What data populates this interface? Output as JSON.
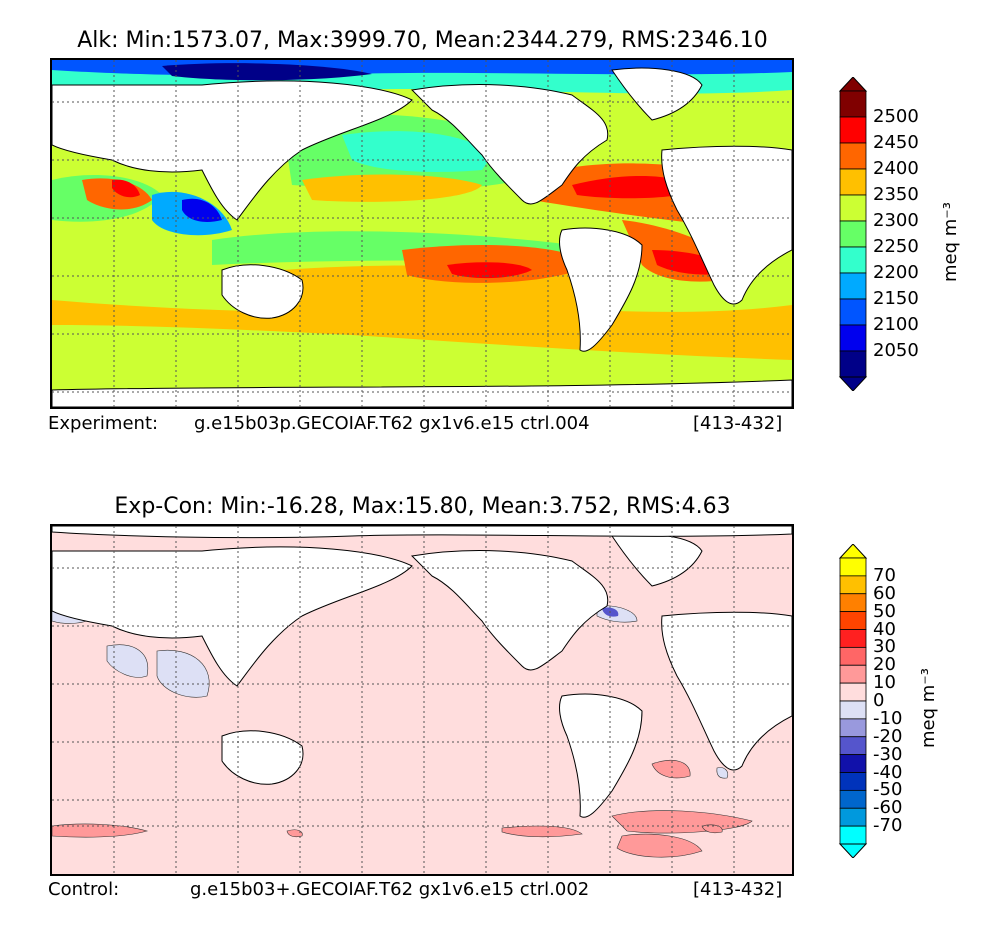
{
  "panels": [
    {
      "title": "Alk: Min:1573.07, Max:3999.70, Mean:2344.279, RMS:2346.10",
      "caption_label": "Experiment:",
      "caption_case": "g.e15b03p.GECOIAF.T62 gx1v6.e15 ctrl.004",
      "caption_years": "[413-432]",
      "unit": "meq m⁻³",
      "colorbar": {
        "labels": [
          "2500",
          "2450",
          "2400",
          "2350",
          "2300",
          "2250",
          "2200",
          "2150",
          "2100",
          "2050"
        ],
        "colors": [
          "#800000",
          "#ff0000",
          "#ff6600",
          "#ffc000",
          "#ccff33",
          "#66ff66",
          "#33ffcc",
          "#00aaff",
          "#0055ff",
          "#0000ee",
          "#000088"
        ]
      }
    },
    {
      "title": "Exp-Con: Min:-16.28, Max:15.80, Mean:3.752, RMS:4.63",
      "caption_label": "Control:",
      "caption_case": "g.e15b03+.GECOIAF.T62 gx1v6.e15 ctrl.002",
      "caption_years": "[413-432]",
      "unit": "meq m⁻³",
      "colorbar": {
        "labels": [
          "70",
          "60",
          "50",
          "40",
          "30",
          "20",
          "10",
          "0",
          "-10",
          "-20",
          "-30",
          "-40",
          "-50",
          "-60",
          "-70"
        ],
        "colors": [
          "#ffff00",
          "#ffc000",
          "#ff8000",
          "#ff4400",
          "#ff2020",
          "#ff6666",
          "#ff9999",
          "#ffdddd",
          "#dde0f5",
          "#9999dd",
          "#5555cc",
          "#1111aa",
          "#0033bb",
          "#0066cc",
          "#0099dd",
          "#00ffff"
        ]
      }
    }
  ],
  "chart_data": [
    {
      "type": "heatmap",
      "title": "Alk: Min:1573.07, Max:3999.70, Mean:2344.279, RMS:2346.10",
      "variable": "Alk",
      "stats": {
        "min": 1573.07,
        "max": 3999.7,
        "mean": 2344.279,
        "rms": 2346.1
      },
      "colorbar_levels": [
        2050,
        2100,
        2150,
        2200,
        2250,
        2300,
        2350,
        2400,
        2450,
        2500
      ],
      "colorbar_extend": "both",
      "units": "meq m⁻³",
      "grid": true,
      "legend_placement": "right"
    },
    {
      "type": "heatmap",
      "title": "Exp-Con: Min:-16.28, Max:15.80, Mean:3.752, RMS:4.63",
      "variable": "Exp-Con",
      "stats": {
        "min": -16.28,
        "max": 15.8,
        "mean": 3.752,
        "rms": 4.63
      },
      "colorbar_levels": [
        -70,
        -60,
        -50,
        -40,
        -30,
        -20,
        -10,
        0,
        10,
        20,
        30,
        40,
        50,
        60,
        70
      ],
      "colorbar_extend": "both",
      "units": "meq m⁻³",
      "grid": true,
      "legend_placement": "right"
    }
  ]
}
